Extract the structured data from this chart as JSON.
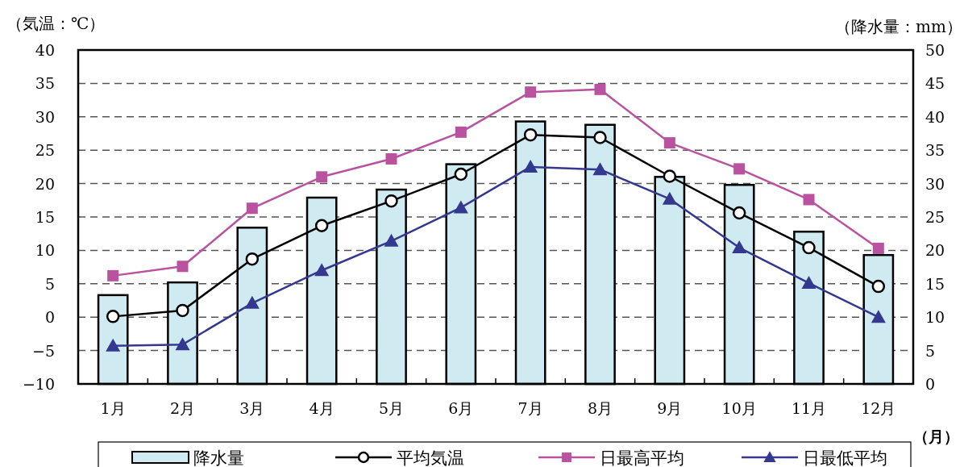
{
  "chart_data": {
    "type": "bar",
    "ylabel": "（気温：℃）",
    "y2label": "（降水量：mm）",
    "xlabel": "（月）",
    "categories": [
      "1月",
      "2月",
      "3月",
      "4月",
      "5月",
      "6月",
      "7月",
      "8月",
      "9月",
      "10月",
      "11月",
      "12月"
    ],
    "series": [
      {
        "name": "降水量",
        "axis": "y2",
        "color": "#cfeaf0",
        "values": [
          13.3,
          15.2,
          23.4,
          27.9,
          29.1,
          32.9,
          39.3,
          38.8,
          31.0,
          29.8,
          22.8,
          19.3
        ]
      },
      {
        "name": "平均気温",
        "type": "line",
        "marker": "circle",
        "color": "#000000",
        "values": [
          0.1,
          1.0,
          8.7,
          13.7,
          17.4,
          21.4,
          27.3,
          26.9,
          21.1,
          15.6,
          10.4,
          4.6
        ]
      },
      {
        "name": "日最高平均",
        "type": "line",
        "marker": "square",
        "color": "#b9529f",
        "values": [
          6.2,
          7.6,
          16.3,
          21.0,
          23.7,
          27.7,
          33.7,
          34.1,
          26.1,
          22.2,
          17.6,
          10.3
        ]
      },
      {
        "name": "日最低平均",
        "type": "line",
        "marker": "triangle",
        "color": "#34388f",
        "values": [
          -4.3,
          -4.1,
          2.1,
          7.0,
          11.4,
          16.4,
          22.5,
          22.1,
          17.7,
          10.4,
          5.1,
          0.0
        ]
      }
    ],
    "ylim": [
      -10,
      40
    ],
    "yticks": [
      {
        "value": -10,
        "label": "−10"
      },
      {
        "value": -5,
        "label": "−5"
      },
      0,
      5,
      10,
      15,
      20,
      25,
      30,
      35,
      40
    ],
    "y2lim": [
      0,
      50
    ],
    "y2ticks": [
      0,
      5,
      10,
      15,
      20,
      25,
      30,
      35,
      40,
      45,
      50
    ],
    "grid": "y",
    "legend": "bottom"
  }
}
